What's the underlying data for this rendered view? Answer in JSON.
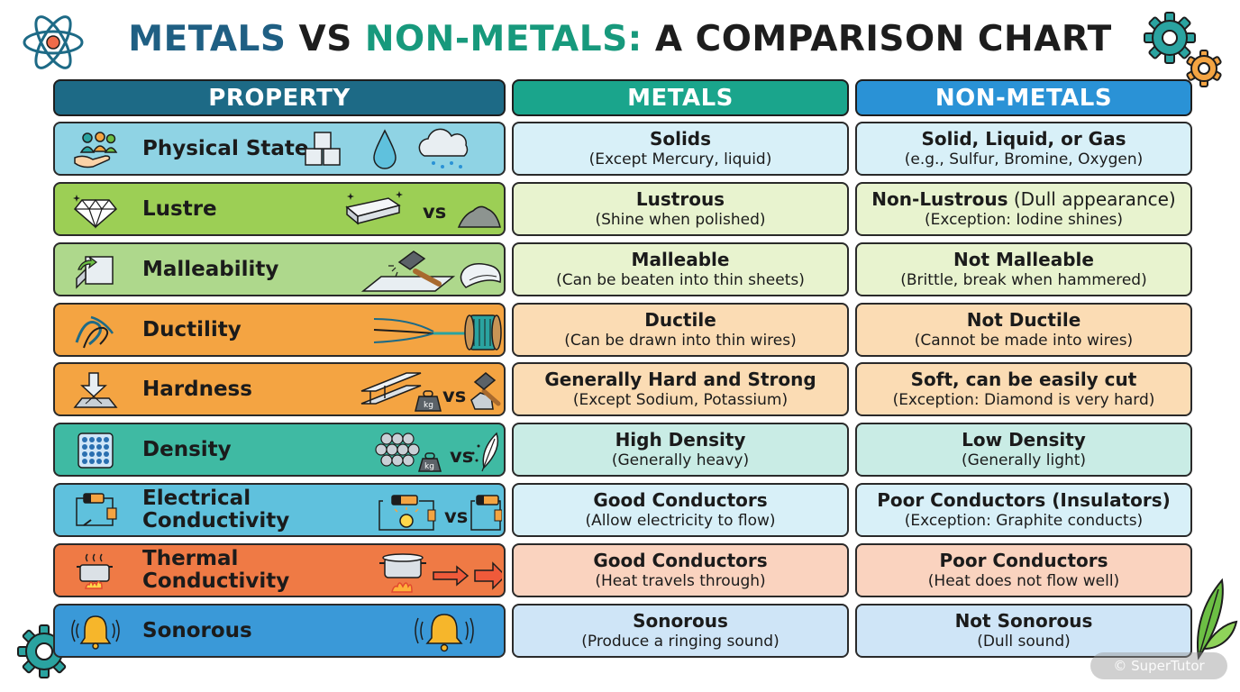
{
  "title": {
    "part1": "METALS",
    "part2": " VS ",
    "part3": "NON-METALS:",
    "part4": " A COMPARISON CHART"
  },
  "headers": {
    "property": "PROPERTY",
    "metals": "METALS",
    "nonmetals": "NON-METALS"
  },
  "rows": [
    {
      "property": "Physical State",
      "icon": "people-hand-icon",
      "vs": "",
      "metals": {
        "main": "Solids",
        "sub": "(Except Mercury, liquid)"
      },
      "nonmetals": {
        "main": "Solid, Liquid, or Gas",
        "main_extra": "",
        "sub": "(e.g., Sulfur, Bromine, Oxygen)"
      }
    },
    {
      "property": "Lustre",
      "icon": "diamond-icon",
      "vs": "vs",
      "metals": {
        "main": "Lustrous",
        "sub": "(Shine when polished)"
      },
      "nonmetals": {
        "main": "Non-Lustrous",
        "main_extra": " (Dull appearance)",
        "sub": "(Exception: Iodine shines)"
      }
    },
    {
      "property": "Malleability",
      "icon": "sheet-bend-icon",
      "vs": "",
      "metals": {
        "main": "Malleable",
        "sub": "(Can be beaten into thin sheets)"
      },
      "nonmetals": {
        "main": "Not Malleable",
        "main_extra": "",
        "sub": "(Brittle, break when hammered)"
      }
    },
    {
      "property": "Ductility",
      "icon": "wires-icon",
      "vs": "",
      "metals": {
        "main": "Ductile",
        "sub": "(Can be drawn into thin wires)"
      },
      "nonmetals": {
        "main": "Not Ductile",
        "main_extra": "",
        "sub": "(Cannot be made into wires)"
      }
    },
    {
      "property": "Hardness",
      "icon": "press-arrow-icon",
      "vs": "vs",
      "metals": {
        "main": "Generally Hard and Strong",
        "sub": "(Except Sodium, Potassium)"
      },
      "nonmetals": {
        "main": "Soft, can be easily cut",
        "main_extra": "",
        "sub": "(Exception: Diamond is very hard)"
      }
    },
    {
      "property": "Density",
      "icon": "atom-grid-icon",
      "vs": "vs",
      "metals": {
        "main": "High Density",
        "sub": "(Generally heavy)"
      },
      "nonmetals": {
        "main": "Low Density",
        "main_extra": "",
        "sub": "(Generally light)"
      }
    },
    {
      "property": "Electrical\nConductivity",
      "icon": "circuit-icon",
      "vs": "vs",
      "metals": {
        "main": "Good Conductors",
        "sub": "(Allow electricity to flow)"
      },
      "nonmetals": {
        "main": "Poor Conductors (Insulators)",
        "main_extra": "",
        "sub": "(Exception: Graphite conducts)"
      }
    },
    {
      "property": "Thermal\nConductivity",
      "icon": "pot-steam-icon",
      "vs": "",
      "metals": {
        "main": "Good Conductors",
        "sub": "(Heat travels through)"
      },
      "nonmetals": {
        "main": "Poor Conductors",
        "main_extra": "",
        "sub": "(Heat does not flow well)"
      }
    },
    {
      "property": "Sonorous",
      "icon": "bell-icon",
      "vs": "",
      "metals": {
        "main": "Sonorous",
        "sub": "(Produce a ringing sound)"
      },
      "nonmetals": {
        "main": "Not Sonorous",
        "main_extra": "",
        "sub": "(Dull sound)"
      }
    }
  ],
  "watermark": "© SuperTutor",
  "illustration_labels": {
    "weight": "kg"
  },
  "colors": {
    "metals_header": "#1aa58c",
    "nonmetals_header": "#2a92d6",
    "property_header": "#1d6a86",
    "row_property_bg": [
      "#8fd3e4",
      "#9ccf55",
      "#aed88c",
      "#f4a442",
      "#f4a442",
      "#3fbaa3",
      "#5fc1dd",
      "#ef7a45",
      "#3a99d8"
    ],
    "row_cell_bg": [
      "#d8f0f8",
      "#e8f3cf",
      "#e8f3cf",
      "#fbdcb4",
      "#fbdcb4",
      "#c9ece5",
      "#d8f0f8",
      "#fad3bf",
      "#cfe5f7"
    ]
  }
}
